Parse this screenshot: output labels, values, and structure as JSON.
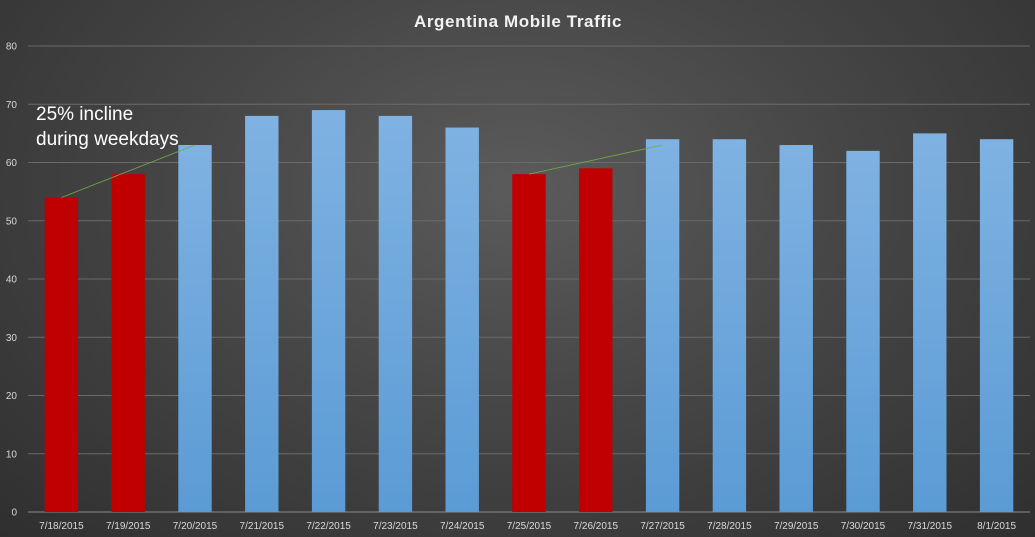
{
  "chart_data": {
    "type": "bar",
    "title": "Argentina Mobile Traffic",
    "xlabel": "",
    "ylabel": "",
    "ylim": [
      0,
      80
    ],
    "yticks": [
      0,
      10,
      20,
      30,
      40,
      50,
      60,
      70,
      80
    ],
    "grid": true,
    "legend": "none",
    "categories": [
      "7/18/2015",
      "7/19/2015",
      "7/20/2015",
      "7/21/2015",
      "7/22/2015",
      "7/23/2015",
      "7/24/2015",
      "7/25/2015",
      "7/26/2015",
      "7/27/2015",
      "7/28/2015",
      "7/29/2015",
      "7/30/2015",
      "7/31/2015",
      "8/1/2015"
    ],
    "values": [
      54,
      58,
      63,
      68,
      69,
      68,
      66,
      58,
      59,
      64,
      64,
      63,
      62,
      65,
      64
    ],
    "highlighted": [
      0,
      1,
      7,
      8
    ],
    "colors": {
      "bar": "#5b9bd5",
      "bar_light": "#7fb2e2",
      "highlight": "#c00000",
      "annotation_line": "#70ad47",
      "grid": "#6a6a6a"
    },
    "annotation": {
      "text": "25% incline\nduring weekdays",
      "arrows": [
        {
          "from_index": 0,
          "from_value": 54,
          "to_index": 2,
          "to_value": 63
        },
        {
          "from_index": 7,
          "from_value": 58,
          "to_index": 9,
          "to_value": 63
        }
      ]
    }
  }
}
